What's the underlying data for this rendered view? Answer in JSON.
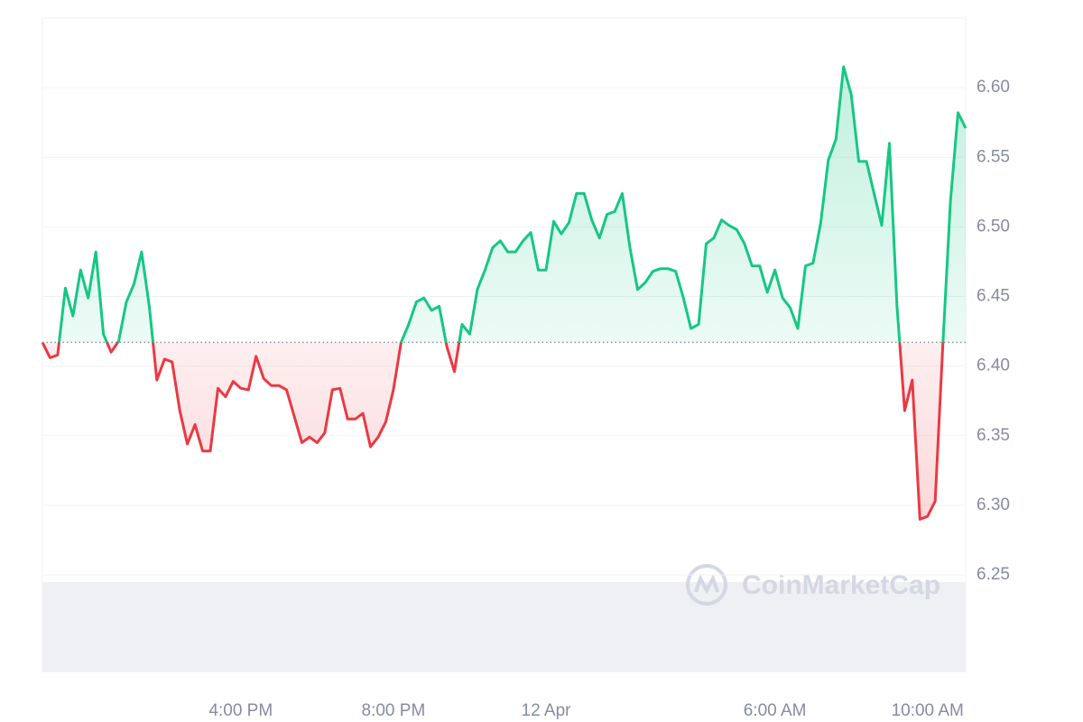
{
  "chart_data": {
    "type": "line",
    "x": [
      -13.2,
      -13.0,
      -12.8,
      -12.6,
      -12.4,
      -12.2,
      -12.0,
      -11.8,
      -11.6,
      -11.4,
      -11.2,
      -11.0,
      -10.8,
      -10.6,
      -10.4,
      -10.2,
      -10.0,
      -9.8,
      -9.6,
      -9.4,
      -9.2,
      -9.0,
      -8.8,
      -8.6,
      -8.4,
      -8.2,
      -8.0,
      -7.8,
      -7.6,
      -7.4,
      -7.2,
      -7.0,
      -6.8,
      -6.6,
      -6.4,
      -6.2,
      -6.0,
      -5.8,
      -5.6,
      -5.4,
      -5.2,
      -5.0,
      -4.8,
      -4.6,
      -4.4,
      -4.2,
      -4.0,
      -3.8,
      -3.6,
      -3.4,
      -3.2,
      -3.0,
      -2.8,
      -2.6,
      -2.4,
      -2.2,
      -2.0,
      -1.8,
      -1.6,
      -1.4,
      -1.2,
      -1.0,
      -0.8,
      -0.6,
      -0.4,
      -0.2,
      0.0,
      0.2,
      0.4,
      0.6,
      0.8,
      1.0,
      1.2,
      1.4,
      1.6,
      1.8,
      2.0,
      2.2,
      2.4,
      2.6,
      2.8,
      3.0,
      3.2,
      3.4,
      3.6,
      3.8,
      4.0,
      4.2,
      4.4,
      4.6,
      4.8,
      5.0,
      5.2,
      5.4,
      5.6,
      5.8,
      6.0,
      6.2,
      6.4,
      6.6,
      6.8,
      7.0,
      7.2,
      7.4,
      7.6,
      7.8,
      8.0,
      8.2,
      8.4,
      8.6,
      8.8,
      9.0,
      9.2,
      9.4,
      9.6,
      9.8,
      10.0,
      10.2,
      10.4,
      10.6,
      10.8,
      11.0
    ],
    "values": [
      6.417,
      6.406,
      6.408,
      6.456,
      6.436,
      6.469,
      6.449,
      6.482,
      6.423,
      6.41,
      6.418,
      6.446,
      6.459,
      6.482,
      6.443,
      6.39,
      6.405,
      6.403,
      6.368,
      6.344,
      6.358,
      6.339,
      6.339,
      6.384,
      6.378,
      6.389,
      6.384,
      6.383,
      6.407,
      6.391,
      6.386,
      6.386,
      6.383,
      6.364,
      6.345,
      6.349,
      6.345,
      6.352,
      6.383,
      6.384,
      6.362,
      6.362,
      6.366,
      6.342,
      6.349,
      6.36,
      6.383,
      6.417,
      6.43,
      6.446,
      6.449,
      6.44,
      6.443,
      6.414,
      6.396,
      6.43,
      6.423,
      6.455,
      6.469,
      6.485,
      6.49,
      6.482,
      6.482,
      6.49,
      6.496,
      6.469,
      6.469,
      6.504,
      6.495,
      6.503,
      6.524,
      6.524,
      6.505,
      6.492,
      6.509,
      6.511,
      6.524,
      6.485,
      6.455,
      6.46,
      6.468,
      6.47,
      6.47,
      6.468,
      6.449,
      6.427,
      6.43,
      6.488,
      6.492,
      6.505,
      6.501,
      6.498,
      6.488,
      6.472,
      6.472,
      6.453,
      6.469,
      6.449,
      6.442,
      6.427,
      6.472,
      6.474,
      6.503,
      6.548,
      6.563,
      6.615,
      6.595,
      6.547,
      6.547,
      6.524,
      6.501,
      6.56,
      6.443,
      6.368,
      6.39,
      6.29,
      6.292,
      6.303,
      6.414,
      6.518,
      6.582,
      6.571
    ],
    "baseline": 6.417,
    "up_color": "#16c784",
    "down_color": "#ea3943",
    "xlim": [
      -13.2,
      11.0
    ],
    "xticks": [
      {
        "value": -8,
        "label": "4:00 PM"
      },
      {
        "value": -4,
        "label": "8:00 PM"
      },
      {
        "value": 0,
        "label": "12 Apr"
      },
      {
        "value": 6,
        "label": "6:00 AM"
      },
      {
        "value": 10,
        "label": "10:00 AM"
      }
    ],
    "ylim": [
      6.18,
      6.65
    ],
    "yticks": [
      {
        "value": 6.25,
        "label": "6.25"
      },
      {
        "value": 6.3,
        "label": "6.30"
      },
      {
        "value": 6.35,
        "label": "6.35"
      },
      {
        "value": 6.4,
        "label": "6.40"
      },
      {
        "value": 6.45,
        "label": "6.45"
      },
      {
        "value": 6.5,
        "label": "6.50"
      },
      {
        "value": 6.55,
        "label": "6.55"
      },
      {
        "value": 6.6,
        "label": "6.60"
      }
    ],
    "grid": true,
    "watermark": "CoinMarketCap"
  }
}
